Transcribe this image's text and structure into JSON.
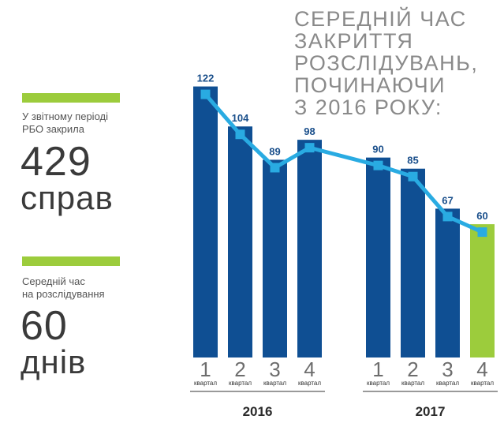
{
  "sidebar": {
    "stat1": {
      "caption_line1": "У звітному періоді",
      "caption_line2": "РБО закрила",
      "number": "429",
      "unit": "справ"
    },
    "stat2": {
      "caption_line1": "Середній час",
      "caption_line2": "на розслідування",
      "number": "60",
      "unit": "днів"
    }
  },
  "title_lines": [
    "СЕРЕДНІЙ ЧАС",
    "ЗАКРИТТЯ",
    "РОЗСЛІДУВАНЬ,",
    "ПОЧИНАЮЧИ",
    "З 2016 РОКУ:"
  ],
  "colors": {
    "bar": "#0f4f93",
    "highlight_bar": "#9ccc3c",
    "line": "#29abe2",
    "accent": "#9ccc3c",
    "value_label": "#1a4f8b",
    "year_rule": "#9a9a9a"
  },
  "chart_data": {
    "type": "bar",
    "title": "СЕРЕДНІЙ ЧАС ЗАКРИТТЯ РОЗСЛІДУВАНЬ, ПОЧИНАЮЧИ З 2016 РОКУ:",
    "groups": [
      {
        "year": "2016",
        "quarters": [
          {
            "q": "1",
            "word": "квартал",
            "value": 122
          },
          {
            "q": "2",
            "word": "квартал",
            "value": 104
          },
          {
            "q": "3",
            "word": "квартал",
            "value": 89
          },
          {
            "q": "4",
            "word": "квартал",
            "value": 98
          }
        ]
      },
      {
        "year": "2017",
        "quarters": [
          {
            "q": "1",
            "word": "квартал",
            "value": 90
          },
          {
            "q": "2",
            "word": "квартал",
            "value": 85
          },
          {
            "q": "3",
            "word": "квартал",
            "value": 67
          },
          {
            "q": "4",
            "word": "квартал",
            "value": 60,
            "highlight": true
          }
        ]
      }
    ],
    "series_overlay": "line connecting quarterly values",
    "ylim": [
      0,
      122
    ],
    "grid": false
  }
}
